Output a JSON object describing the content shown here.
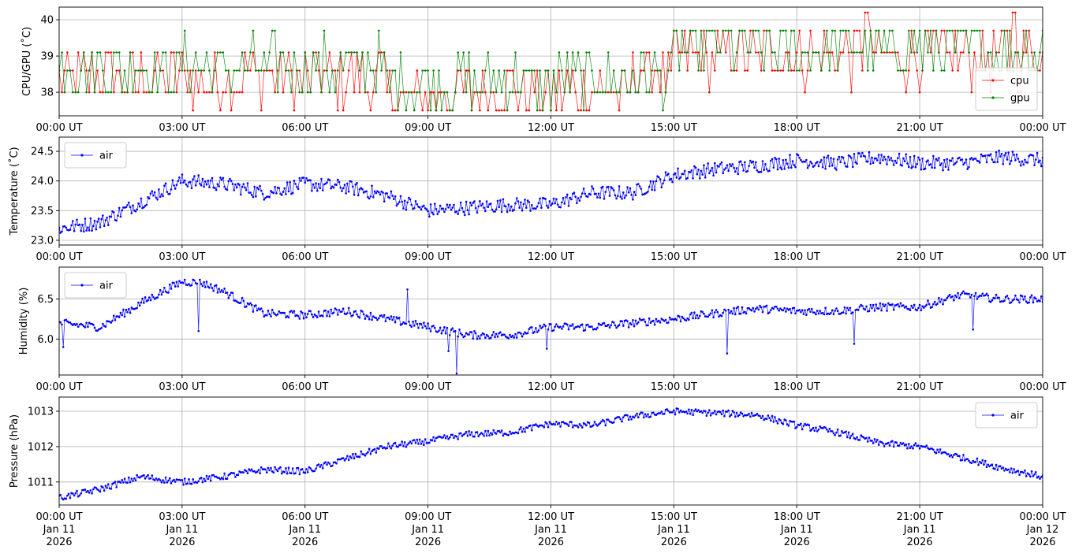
{
  "chart_data": [
    {
      "type": "line",
      "panel": "cpu_gpu",
      "ylabel": "CPU/GPU (˚C)",
      "ylim": [
        37.35,
        40.35
      ],
      "yticks": [
        38,
        39,
        40
      ],
      "ytick_labels": [
        "38",
        "39",
        "40"
      ],
      "grid": true,
      "legend": "lower-right",
      "x": {
        "start": "00:00 UT",
        "end": "00:00 UT",
        "step_minutes": 4
      },
      "series": [
        {
          "name": "cpu",
          "color": "#ff0000",
          "trend": "steps 38–39 early, dips toward 37.5–38 from 08:00–14:00, rises to 39–39.7 after 15:00, peaks ~40.2 near 20:00 and 23:30",
          "values_summary": {
            "min": 37.5,
            "max": 40.2
          }
        },
        {
          "name": "gpu",
          "color": "#008000",
          "trend": "steps 38.5–39.7 throughout, dips to 37.5–38 from 08:00–14:00, mostly 39–39.7 after 15:00",
          "values_summary": {
            "min": 37.5,
            "max": 39.7
          }
        }
      ]
    },
    {
      "type": "line",
      "panel": "temperature",
      "ylabel": "Temperature (˚C)",
      "ylim": [
        22.92,
        24.74
      ],
      "yticks": [
        23.0,
        23.5,
        24.0,
        24.5
      ],
      "ytick_labels": [
        "23.0",
        "23.5",
        "24.0",
        "24.5"
      ],
      "grid": true,
      "legend": "upper-left",
      "series": [
        {
          "name": "air",
          "color": "#0000ff",
          "anchors": [
            [
              0,
              23.2
            ],
            [
              1,
              23.3
            ],
            [
              2,
              23.65
            ],
            [
              3,
              24.0
            ],
            [
              4,
              23.95
            ],
            [
              5,
              23.8
            ],
            [
              6,
              23.95
            ],
            [
              7,
              23.9
            ],
            [
              8,
              23.75
            ],
            [
              9,
              23.5
            ],
            [
              10,
              23.55
            ],
            [
              11,
              23.6
            ],
            [
              12,
              23.6
            ],
            [
              13,
              23.8
            ],
            [
              14,
              23.8
            ],
            [
              15,
              24.1
            ],
            [
              16,
              24.2
            ],
            [
              17,
              24.25
            ],
            [
              18,
              24.35
            ],
            [
              19,
              24.3
            ],
            [
              20,
              24.4
            ],
            [
              21,
              24.3
            ],
            [
              22,
              24.3
            ],
            [
              23,
              24.4
            ],
            [
              24,
              24.35
            ]
          ],
          "noise": 0.12
        }
      ]
    },
    {
      "type": "line",
      "panel": "humidity",
      "ylabel": "Humidity (%)",
      "ylim": [
        5.55,
        6.9
      ],
      "yticks": [
        6.0,
        6.5
      ],
      "ytick_labels": [
        "6.0",
        "6.5"
      ],
      "grid": true,
      "legend": "upper-left",
      "series": [
        {
          "name": "air",
          "color": "#0000ff",
          "anchors": [
            [
              0,
              6.2
            ],
            [
              1,
              6.15
            ],
            [
              2,
              6.45
            ],
            [
              3,
              6.72
            ],
            [
              3.5,
              6.7
            ],
            [
              4,
              6.6
            ],
            [
              4.7,
              6.4
            ],
            [
              5,
              6.32
            ],
            [
              6,
              6.3
            ],
            [
              7,
              6.35
            ],
            [
              8,
              6.25
            ],
            [
              9,
              6.15
            ],
            [
              10,
              6.05
            ],
            [
              11,
              6.05
            ],
            [
              12,
              6.15
            ],
            [
              13,
              6.15
            ],
            [
              14,
              6.2
            ],
            [
              15,
              6.25
            ],
            [
              16,
              6.32
            ],
            [
              17,
              6.38
            ],
            [
              18,
              6.35
            ],
            [
              19,
              6.35
            ],
            [
              20,
              6.4
            ],
            [
              21,
              6.4
            ],
            [
              22,
              6.55
            ],
            [
              23,
              6.5
            ],
            [
              24,
              6.5
            ]
          ],
          "noise": 0.05,
          "spikes": [
            [
              0.1,
              5.9
            ],
            [
              3.4,
              6.1
            ],
            [
              8.5,
              6.62
            ],
            [
              9.5,
              5.85
            ],
            [
              9.7,
              5.57
            ],
            [
              11.9,
              5.88
            ],
            [
              16.3,
              5.82
            ],
            [
              19.4,
              5.94
            ],
            [
              22.3,
              6.12
            ]
          ]
        }
      ]
    },
    {
      "type": "line",
      "panel": "pressure",
      "ylabel": "Pressure (hPa)",
      "ylim": [
        1010.35,
        1013.4
      ],
      "yticks": [
        1011,
        1012,
        1013
      ],
      "ytick_labels": [
        "1011",
        "1012",
        "1013"
      ],
      "grid": true,
      "legend": "upper-right",
      "series": [
        {
          "name": "air",
          "color": "#0000ff",
          "anchors": [
            [
              0,
              1010.55
            ],
            [
              1,
              1010.8
            ],
            [
              2,
              1011.15
            ],
            [
              3,
              1011.0
            ],
            [
              4,
              1011.15
            ],
            [
              5,
              1011.35
            ],
            [
              6,
              1011.3
            ],
            [
              7,
              1011.65
            ],
            [
              8,
              1012.0
            ],
            [
              9,
              1012.15
            ],
            [
              10,
              1012.35
            ],
            [
              11,
              1012.4
            ],
            [
              12,
              1012.65
            ],
            [
              13,
              1012.6
            ],
            [
              14,
              1012.85
            ],
            [
              15,
              1013.0
            ],
            [
              16,
              1012.95
            ],
            [
              17,
              1012.9
            ],
            [
              18,
              1012.6
            ],
            [
              19,
              1012.4
            ],
            [
              20,
              1012.1
            ],
            [
              21,
              1012.0
            ],
            [
              22,
              1011.7
            ],
            [
              23,
              1011.4
            ],
            [
              24,
              1011.15
            ]
          ],
          "noise": 0.09
        }
      ]
    }
  ],
  "x_axis": {
    "ticks": [
      "00:00 UT",
      "03:00 UT",
      "06:00 UT",
      "09:00 UT",
      "12:00 UT",
      "15:00 UT",
      "18:00 UT",
      "21:00 UT",
      "00:00 UT"
    ],
    "dates": [
      "Jan 11",
      "Jan 11",
      "Jan 11",
      "Jan 11",
      "Jan 11",
      "Jan 11",
      "Jan 11",
      "Jan 11",
      "Jan 12"
    ],
    "years": [
      "2026",
      "2026",
      "2026",
      "2026",
      "2026",
      "2026",
      "2026",
      "2026",
      "2026"
    ]
  },
  "colors": {
    "cpu": "#ff0000",
    "gpu": "#008000",
    "air": "#0000ff",
    "grid": "#b0b0b0"
  }
}
